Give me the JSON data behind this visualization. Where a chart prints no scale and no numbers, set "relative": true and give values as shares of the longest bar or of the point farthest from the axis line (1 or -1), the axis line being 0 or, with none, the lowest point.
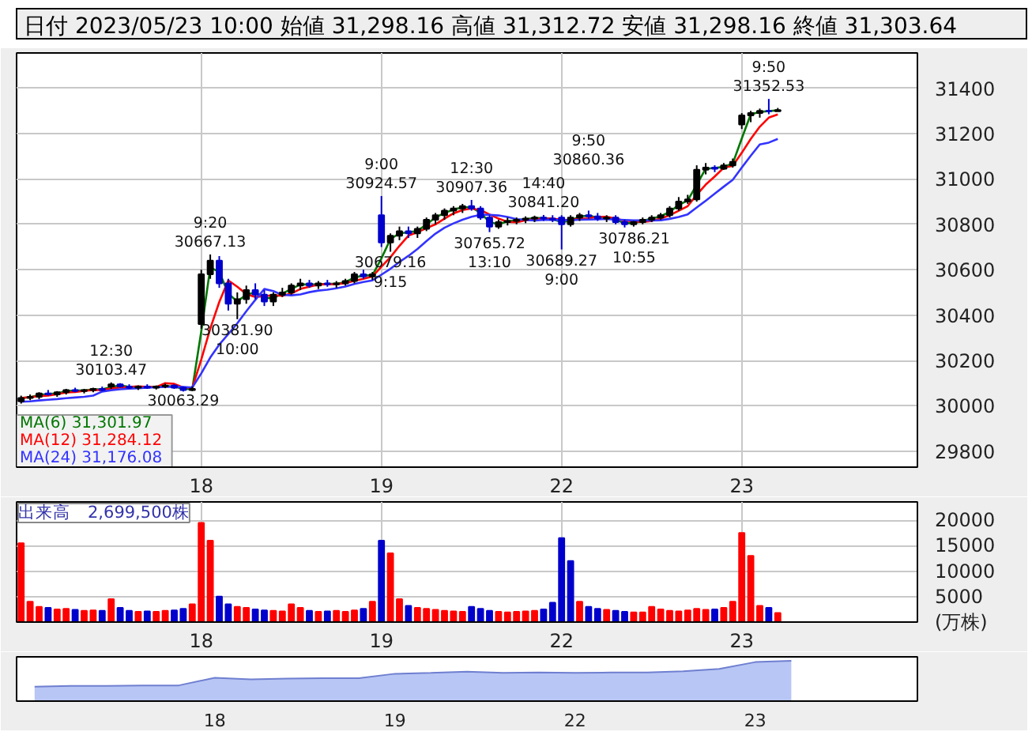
{
  "chart_data": [
    {
      "type": "candlestick",
      "title": "日付 2023/05/23 10:00 始値 31,298.16 高値 31,312.72 安値 31,298.16 終値 31,303.64",
      "categories": [
        null,
        null,
        null,
        null,
        null,
        null,
        null,
        null,
        null,
        null,
        null,
        null,
        null,
        null,
        null,
        null,
        null,
        null,
        null,
        null,
        "18",
        null,
        null,
        null,
        null,
        null,
        null,
        null,
        null,
        null,
        null,
        null,
        null,
        null,
        null,
        null,
        null,
        null,
        null,
        null,
        "19",
        null,
        null,
        null,
        null,
        null,
        null,
        null,
        null,
        null,
        null,
        null,
        null,
        null,
        null,
        null,
        null,
        null,
        null,
        null,
        "22",
        null,
        null,
        null,
        null,
        null,
        null,
        null,
        null,
        null,
        null,
        null,
        null,
        null,
        null,
        null,
        null,
        null,
        null,
        null,
        "23",
        null,
        null,
        null,
        null,
        null,
        null,
        null,
        null,
        null,
        null,
        null,
        null,
        null,
        null,
        null,
        null,
        null,
        null,
        null
      ],
      "ohlc": [
        [
          30020,
          30045,
          30010,
          30035
        ],
        [
          30035,
          30050,
          30025,
          30040
        ],
        [
          30040,
          30060,
          30030,
          30055
        ],
        [
          30055,
          30070,
          30045,
          30050
        ],
        [
          30050,
          30065,
          30040,
          30060
        ],
        [
          30060,
          30075,
          30050,
          30070
        ],
        [
          30070,
          30080,
          30060,
          30065
        ],
        [
          30065,
          30075,
          30055,
          30070
        ],
        [
          30070,
          30080,
          30060,
          30075
        ],
        [
          30075,
          30085,
          30065,
          30070
        ],
        [
          30085,
          30103.47,
          30075,
          30095
        ],
        [
          30095,
          30100,
          30080,
          30085
        ],
        [
          30085,
          30095,
          30075,
          30080
        ],
        [
          30080,
          30090,
          30070,
          30085
        ],
        [
          30085,
          30095,
          30075,
          30080
        ],
        [
          30080,
          30090,
          30072,
          30085
        ],
        [
          30085,
          30098,
          30078,
          30090
        ],
        [
          30090,
          30095,
          30075,
          30080
        ],
        [
          30080,
          30085,
          30063.29,
          30070
        ],
        [
          30070,
          30085,
          30065,
          30075
        ],
        [
          30360,
          30600,
          30340,
          30580
        ],
        [
          30580,
          30667.13,
          30560,
          30640
        ],
        [
          30640,
          30660,
          30520,
          30540
        ],
        [
          30540,
          30560,
          30420,
          30450
        ],
        [
          30450,
          30500,
          30381.9,
          30470
        ],
        [
          30470,
          30530,
          30450,
          30510
        ],
        [
          30510,
          30540,
          30470,
          30490
        ],
        [
          30490,
          30510,
          30440,
          30460
        ],
        [
          30460,
          30500,
          30440,
          30490
        ],
        [
          30490,
          30520,
          30480,
          30500
        ],
        [
          30500,
          30540,
          30490,
          30530
        ],
        [
          30530,
          30560,
          30510,
          30540
        ],
        [
          30540,
          30555,
          30520,
          30530
        ],
        [
          30530,
          30550,
          30515,
          30540
        ],
        [
          30540,
          30555,
          30525,
          30535
        ],
        [
          30535,
          30550,
          30520,
          30540
        ],
        [
          30540,
          30560,
          30530,
          30550
        ],
        [
          30550,
          30590,
          30540,
          30580
        ],
        [
          30580,
          30600,
          30560,
          30570
        ],
        [
          30570,
          30590,
          30555,
          30580
        ],
        [
          30840,
          30924.57,
          30700,
          30720
        ],
        [
          30720,
          30760,
          30679.16,
          30750
        ],
        [
          30750,
          30790,
          30730,
          30770
        ],
        [
          30770,
          30790,
          30740,
          30760
        ],
        [
          30760,
          30790,
          30740,
          30780
        ],
        [
          30780,
          30830,
          30770,
          30820
        ],
        [
          30820,
          30850,
          30800,
          30840
        ],
        [
          30840,
          30870,
          30820,
          30860
        ],
        [
          30860,
          30880,
          30840,
          30870
        ],
        [
          30870,
          30890,
          30850,
          30880
        ],
        [
          30880,
          30907.36,
          30860,
          30870
        ],
        [
          30870,
          30880,
          30820,
          30830
        ],
        [
          30830,
          30840,
          30765.72,
          30790
        ],
        [
          30790,
          30820,
          30780,
          30810
        ],
        [
          30810,
          30830,
          30795,
          30815
        ],
        [
          30815,
          30830,
          30800,
          30820
        ],
        [
          30820,
          30835,
          30805,
          30825
        ],
        [
          30825,
          30838,
          30810,
          30830
        ],
        [
          30830,
          30841.2,
          30815,
          30825
        ],
        [
          30825,
          30840,
          30810,
          30820
        ],
        [
          30830,
          30840,
          30689.27,
          30800
        ],
        [
          30800,
          30840,
          30790,
          30830
        ],
        [
          30830,
          30850,
          30815,
          30840
        ],
        [
          30840,
          30860.36,
          30825,
          30835
        ],
        [
          30835,
          30850,
          30815,
          30825
        ],
        [
          30825,
          30840,
          30810,
          30830
        ],
        [
          30830,
          30840,
          30800,
          30810
        ],
        [
          30810,
          30820,
          30786.21,
          30800
        ],
        [
          30800,
          30815,
          30790,
          30810
        ],
        [
          30810,
          30830,
          30800,
          30820
        ],
        [
          30820,
          30840,
          30810,
          30830
        ],
        [
          30830,
          30850,
          30820,
          30840
        ],
        [
          30840,
          30880,
          30830,
          30870
        ],
        [
          30870,
          30920,
          30860,
          30900
        ],
        [
          30900,
          30930,
          30890,
          30910
        ],
        [
          30910,
          31060,
          30900,
          31040
        ],
        [
          31040,
          31070,
          31020,
          31050
        ],
        [
          31050,
          31060,
          31030,
          31045
        ],
        [
          31045,
          31070,
          31040,
          31060
        ],
        [
          31060,
          31090,
          31050,
          31075
        ],
        [
          31240,
          31290,
          31220,
          31280
        ],
        [
          31280,
          31300,
          31250,
          31290
        ],
        [
          31290,
          31310,
          31270,
          31300
        ],
        [
          31300,
          31352.53,
          31285,
          31298.16
        ],
        [
          31298.16,
          31312.72,
          31298.16,
          31303.64
        ],
        null,
        null,
        null,
        null,
        null,
        null,
        null,
        null,
        null,
        null,
        null,
        null,
        null,
        null,
        null
      ],
      "colors": [
        "#000000",
        "#000000",
        "#000000",
        "#0000cc",
        "#000000",
        "#000000",
        "#0000cc",
        "#000000",
        "#000000",
        "#0000cc",
        "#000000",
        "#0000cc",
        "#0000cc",
        "#000000",
        "#0000cc",
        "#000000",
        "#000000",
        "#0000cc",
        "#0000cc",
        "#000000",
        "#000000",
        "#000000",
        "#0000cc",
        "#0000cc",
        "#000000",
        "#000000",
        "#0000cc",
        "#0000cc",
        "#000000",
        "#000000",
        "#000000",
        "#000000",
        "#0000cc",
        "#000000",
        "#0000cc",
        "#000000",
        "#000000",
        "#000000",
        "#0000cc",
        "#000000",
        "#0000cc",
        "#000000",
        "#000000",
        "#0000cc",
        "#000000",
        "#000000",
        "#000000",
        "#000000",
        "#000000",
        "#000000",
        "#0000cc",
        "#0000cc",
        "#0000cc",
        "#000000",
        "#000000",
        "#000000",
        "#000000",
        "#000000",
        "#0000cc",
        "#0000cc",
        "#0000cc",
        "#000000",
        "#000000",
        "#0000cc",
        "#0000cc",
        "#000000",
        "#0000cc",
        "#0000cc",
        "#000000",
        "#000000",
        "#000000",
        "#000000",
        "#000000",
        "#000000",
        "#000000",
        "#000000",
        "#000000",
        "#0000cc",
        "#000000",
        "#000000",
        "#000000",
        "#000000",
        "#000000",
        "#0000cc",
        "#000000",
        null,
        null,
        null,
        null,
        null,
        null,
        null,
        null,
        null,
        null,
        null,
        null,
        null,
        null,
        null
      ],
      "series": [
        {
          "type": "line",
          "name": "MA(6)  31,301.97",
          "color": "#007700",
          "values": [
            30035,
            30038,
            30048,
            30053,
            30055,
            30065,
            30068,
            30068,
            30073,
            30073,
            30083,
            30090,
            30083,
            30083,
            30083,
            30083,
            30088,
            30085,
            30075,
            30073,
            30328,
            30610,
            30590,
            30495,
            30460,
            30490,
            30500,
            30475,
            30475,
            30495,
            30515,
            30535,
            30535,
            30535,
            30538,
            30538,
            30545,
            30565,
            30575,
            30575,
            30650,
            30735,
            30760,
            30765,
            30770,
            30800,
            30830,
            30850,
            30865,
            30875,
            30875,
            30850,
            30810,
            30800,
            30813,
            30818,
            30823,
            30828,
            30828,
            30823,
            30810,
            30815,
            30835,
            30838,
            30830,
            30828,
            30820,
            30805,
            30805,
            30815,
            30825,
            30835,
            30855,
            30885,
            30905,
            30975,
            31045,
            31048,
            31053,
            31068,
            31178,
            31285,
            31295,
            31299,
            31301.97,
            null,
            null,
            null,
            null,
            null,
            null,
            null,
            null,
            null,
            null,
            null,
            null,
            null,
            null,
            null
          ]
        },
        {
          "type": "line",
          "name": "MA(12)  31,284.12",
          "color": "#ff0000",
          "values": [
            30035,
            30038,
            30043,
            30045,
            30051,
            30059,
            30061,
            30066,
            30070,
            30070,
            30076,
            30081,
            30083,
            30086,
            30083,
            30083,
            30100,
            30097,
            30081,
            30079,
            30204,
            30341,
            30458,
            30553,
            30525,
            30493,
            30480,
            30483,
            30488,
            30485,
            30495,
            30515,
            30525,
            30535,
            30536,
            30536,
            30541,
            30551,
            30560,
            30570,
            30613,
            30655,
            30705,
            30750,
            30765,
            30783,
            30800,
            30825,
            30848,
            30863,
            30870,
            30863,
            30843,
            30825,
            30811,
            30809,
            30818,
            30823,
            30825,
            30825,
            30820,
            30819,
            30824,
            30826,
            30833,
            30833,
            30825,
            30816,
            30813,
            30810,
            30815,
            30825,
            30840,
            30860,
            30880,
            30930,
            30975,
            31011,
            31049,
            31058,
            31115,
            31176,
            31230,
            31270,
            31284.12,
            null,
            null,
            null,
            null,
            null,
            null,
            null,
            null,
            null,
            null,
            null,
            null,
            null,
            null,
            null
          ]
        },
        {
          "type": "line",
          "name": "MA(24)  31,176.08",
          "color": "#3333ff",
          "values": [
            30018,
            30020,
            30024,
            30027,
            30030,
            30034,
            30037,
            30040,
            30045,
            30063,
            30069,
            30073,
            30076,
            30078,
            30080,
            30082,
            30084,
            30084,
            30083,
            30081,
            30143,
            30213,
            30270,
            30316,
            30364,
            30417,
            30467,
            30515,
            30506,
            30489,
            30487,
            30491,
            30501,
            30508,
            30512,
            30518,
            30526,
            30537,
            30546,
            30553,
            30578,
            30604,
            30634,
            30661,
            30691,
            30726,
            30759,
            30785,
            30804,
            30820,
            30833,
            30842,
            30842,
            30839,
            30832,
            30823,
            30819,
            30817,
            30819,
            30820,
            30818,
            30818,
            30820,
            30821,
            30822,
            30823,
            30821,
            30819,
            30817,
            30817,
            30817,
            30818,
            30824,
            30832,
            30844,
            30874,
            30904,
            30935,
            30966,
            30996,
            31050,
            31102,
            31152,
            31160,
            31176.08,
            null,
            null,
            null,
            null,
            null,
            null,
            null,
            null,
            null,
            null,
            null,
            null,
            null,
            null,
            null
          ]
        }
      ],
      "ylim": [
        29730,
        31555
      ],
      "yticks": [
        29800,
        30000,
        30200,
        30400,
        30600,
        30800,
        31000,
        31200,
        31400
      ],
      "grid": true,
      "legend": "bottom left",
      "annotations": [
        {
          "text": "12:30\n30103.47",
          "y": 30103.47
        },
        {
          "text": "30063.29",
          "y": 30063.29
        },
        {
          "text": "9:20\n30667.13",
          "y": 30667.13
        },
        {
          "text": "30381.90\n10:00",
          "y": 30381.9
        },
        {
          "text": "9:00\n30924.57",
          "y": 30924.57
        },
        {
          "text": "30679.16\n9:15",
          "y": 30679.16
        },
        {
          "text": "12:30\n30907.36",
          "y": 30907.36
        },
        {
          "text": "30765.72\n13:10",
          "y": 30765.72
        },
        {
          "text": "14:40\n30841.20",
          "y": 30841.2
        },
        {
          "text": "30689.27\n9:00",
          "y": 30689.27
        },
        {
          "text": "9:50\n30860.36",
          "y": 30860.36
        },
        {
          "text": "30786.21\n10:55",
          "y": 30786.21
        },
        {
          "text": "9:50\n31352.53",
          "y": 31352.53
        }
      ]
    },
    {
      "type": "bar",
      "title": "出来高　2,699,500株",
      "categories": [
        null,
        null,
        null,
        null,
        null,
        null,
        null,
        null,
        null,
        null,
        null,
        null,
        null,
        null,
        null,
        null,
        null,
        null,
        null,
        null,
        "18",
        null,
        null,
        null,
        null,
        null,
        null,
        null,
        null,
        null,
        null,
        null,
        null,
        null,
        null,
        null,
        null,
        null,
        null,
        null,
        "19",
        null,
        null,
        null,
        null,
        null,
        null,
        null,
        null,
        null,
        null,
        null,
        null,
        null,
        null,
        null,
        null,
        null,
        null,
        null,
        "22",
        null,
        null,
        null,
        null,
        null,
        null,
        null,
        null,
        null,
        null,
        null,
        null,
        null,
        null,
        null,
        null,
        null,
        null,
        null,
        "23",
        null,
        null,
        null,
        null,
        null,
        null,
        null,
        null,
        null,
        null,
        null,
        null,
        null,
        null,
        null,
        null,
        null,
        null,
        null
      ],
      "values": [
        15500,
        4000,
        3000,
        2800,
        2500,
        2600,
        2400,
        2200,
        2300,
        2200,
        4500,
        2800,
        2200,
        2000,
        2100,
        2000,
        2200,
        2300,
        2600,
        3500,
        19500,
        16000,
        5000,
        3500,
        3000,
        2800,
        2500,
        2300,
        2200,
        2100,
        3500,
        2800,
        2200,
        2000,
        2100,
        2200,
        2000,
        2300,
        2600,
        4000,
        16000,
        13500,
        4500,
        3200,
        2800,
        2600,
        2400,
        2200,
        2100,
        2000,
        3000,
        2600,
        2200,
        2000,
        1900,
        2000,
        2100,
        2200,
        2500,
        3800,
        16500,
        12000,
        4000,
        3000,
        2600,
        2400,
        2200,
        2000,
        1900,
        1900,
        3000,
        2500,
        2200,
        2100,
        2300,
        2600,
        2400,
        2500,
        2800,
        4000,
        17500,
        13000,
        3200,
        2800,
        1800,
        null,
        null,
        null,
        null,
        null,
        null,
        null,
        null,
        null,
        null,
        null,
        null,
        null,
        null,
        null
      ],
      "colors": [
        "#ff0000",
        "#ff0000",
        "#ff0000",
        "#0000cc",
        "#ff0000",
        "#ff0000",
        "#0000cc",
        "#ff0000",
        "#ff0000",
        "#0000cc",
        "#ff0000",
        "#0000cc",
        "#0000cc",
        "#ff0000",
        "#0000cc",
        "#ff0000",
        "#ff0000",
        "#0000cc",
        "#0000cc",
        "#ff0000",
        "#ff0000",
        "#ff0000",
        "#0000cc",
        "#0000cc",
        "#ff0000",
        "#ff0000",
        "#0000cc",
        "#0000cc",
        "#ff0000",
        "#ff0000",
        "#ff0000",
        "#ff0000",
        "#0000cc",
        "#ff0000",
        "#0000cc",
        "#ff0000",
        "#ff0000",
        "#ff0000",
        "#0000cc",
        "#ff0000",
        "#0000cc",
        "#ff0000",
        "#ff0000",
        "#0000cc",
        "#ff0000",
        "#ff0000",
        "#ff0000",
        "#ff0000",
        "#ff0000",
        "#ff0000",
        "#0000cc",
        "#0000cc",
        "#0000cc",
        "#ff0000",
        "#ff0000",
        "#ff0000",
        "#ff0000",
        "#ff0000",
        "#0000cc",
        "#0000cc",
        "#0000cc",
        "#0000cc",
        "#ff0000",
        "#0000cc",
        "#0000cc",
        "#ff0000",
        "#0000cc",
        "#0000cc",
        "#ff0000",
        "#ff0000",
        "#ff0000",
        "#ff0000",
        "#ff0000",
        "#ff0000",
        "#ff0000",
        "#ff0000",
        "#ff0000",
        "#0000cc",
        "#ff0000",
        "#ff0000",
        "#ff0000",
        "#ff0000",
        "#ff0000",
        "#0000cc",
        "#ff0000",
        null,
        null,
        null,
        null,
        null,
        null,
        null,
        null,
        null,
        null,
        null,
        null,
        null,
        null,
        null
      ],
      "ylim": [
        0,
        23600
      ],
      "yticks": [
        5000,
        10000,
        15000,
        20000
      ],
      "grid": true,
      "annotations": [
        "(万株)"
      ]
    },
    {
      "type": "area",
      "relative": true,
      "categories": [
        null,
        null,
        null,
        null,
        null,
        "18",
        null,
        null,
        null,
        null,
        "19",
        null,
        null,
        null,
        null,
        "22",
        null,
        null,
        null,
        null,
        "23",
        null,
        null,
        null,
        null
      ],
      "series": [
        {
          "color": "#b8c6f5",
          "values": [
            0.36,
            0.38,
            0.38,
            0.39,
            0.39,
            0.58,
            0.54,
            0.56,
            0.57,
            0.57,
            0.68,
            0.7,
            0.73,
            0.7,
            0.71,
            0.7,
            0.71,
            0.71,
            0.74,
            0.8,
            0.97,
            1.0,
            null,
            null,
            null
          ]
        }
      ]
    }
  ]
}
